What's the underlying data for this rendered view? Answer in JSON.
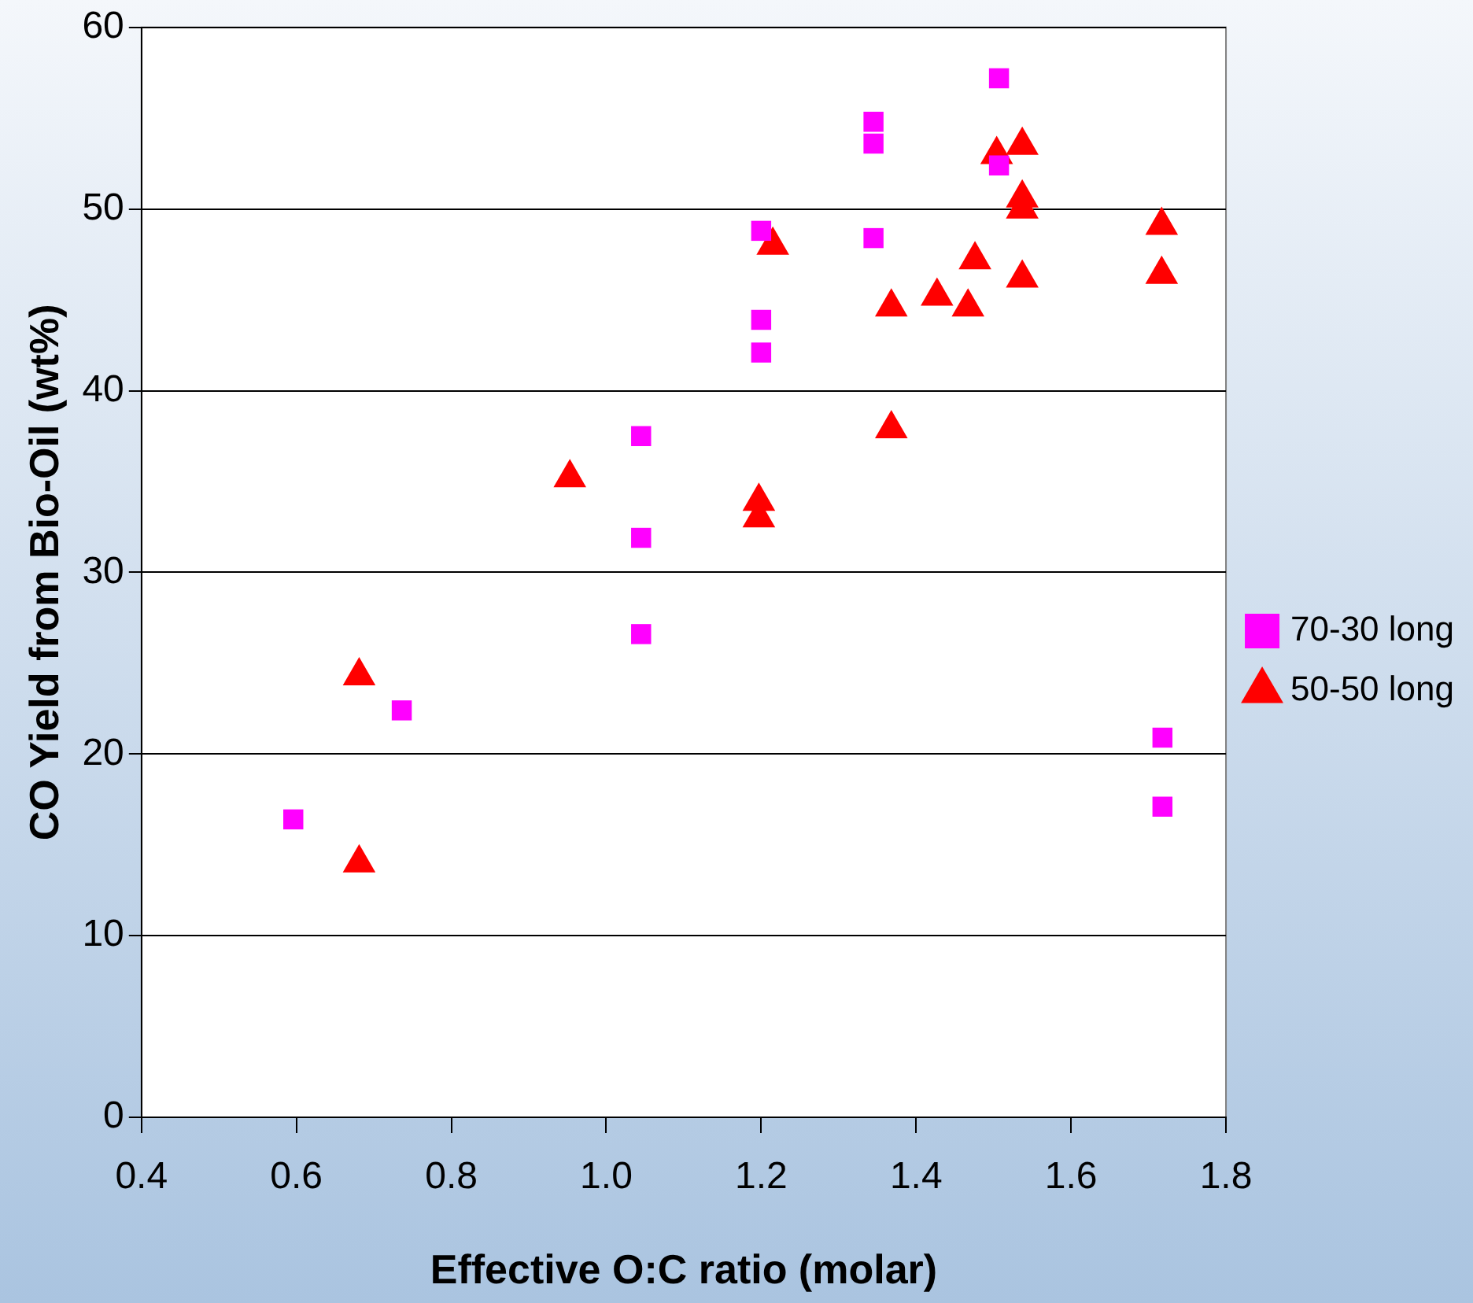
{
  "chart_data": {
    "type": "scatter",
    "xlabel": "Effective O:C ratio (molar)",
    "ylabel": "CO Yield from Bio-Oil (wt%)",
    "xlim": [
      0.4,
      1.8
    ],
    "xticks": [
      0.4,
      0.6,
      0.8,
      {
        "value": 1,
        "label": "1.0"
      },
      1.2,
      1.4,
      1.6,
      1.8
    ],
    "ylim": [
      0,
      60
    ],
    "yticks": [
      0,
      10,
      20,
      30,
      40,
      50,
      60
    ],
    "grid": "y",
    "legend": "right",
    "series": [
      {
        "name": "70-30 long",
        "color": "#ff00ff",
        "marker": "square",
        "x": [
          0.596,
          0.736,
          1.045,
          1.045,
          1.045,
          1.2,
          1.2,
          1.2,
          1.345,
          1.345,
          1.345,
          1.507,
          1.507,
          1.718,
          1.718
        ],
        "values": [
          16.4,
          22.4,
          37.5,
          31.9,
          26.6,
          48.8,
          43.9,
          42.1,
          54.8,
          53.6,
          48.4,
          57.2,
          52.4,
          20.9,
          17.1
        ]
      },
      {
        "name": "50-50 long",
        "color": "#ff0000",
        "marker": "triangle",
        "x": [
          0.681,
          0.681,
          0.953,
          1.215,
          1.197,
          1.197,
          1.368,
          1.368,
          1.427,
          1.467,
          1.476,
          1.504,
          1.537,
          1.537,
          1.537,
          1.537,
          1.717,
          1.717
        ],
        "values": [
          24.3,
          14.0,
          35.2,
          48.0,
          33.9,
          33.0,
          44.6,
          37.9,
          45.2,
          44.6,
          47.2,
          53.0,
          53.5,
          50.6,
          50.0,
          46.2,
          49.1,
          46.4
        ]
      }
    ]
  }
}
